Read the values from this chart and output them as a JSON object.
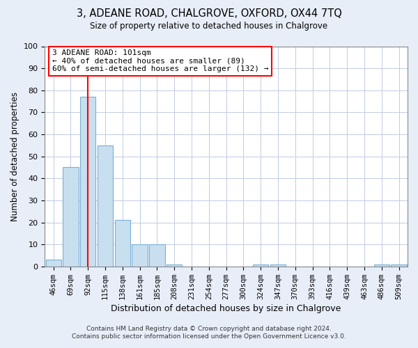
{
  "title": "3, ADEANE ROAD, CHALGROVE, OXFORD, OX44 7TQ",
  "subtitle": "Size of property relative to detached houses in Chalgrove",
  "xlabel": "Distribution of detached houses by size in Chalgrove",
  "ylabel": "Number of detached properties",
  "bar_labels": [
    "46sqm",
    "69sqm",
    "92sqm",
    "115sqm",
    "138sqm",
    "161sqm",
    "185sqm",
    "208sqm",
    "231sqm",
    "254sqm",
    "277sqm",
    "300sqm",
    "324sqm",
    "347sqm",
    "370sqm",
    "393sqm",
    "416sqm",
    "439sqm",
    "463sqm",
    "486sqm",
    "509sqm"
  ],
  "bar_values": [
    3,
    45,
    77,
    55,
    21,
    10,
    10,
    1,
    0,
    0,
    0,
    0,
    1,
    1,
    0,
    0,
    0,
    0,
    0,
    1,
    1
  ],
  "bar_color": "#c8dff0",
  "bar_edge_color": "#7aafd4",
  "vline_x_index": 2,
  "vline_color": "#ff0000",
  "ylim": [
    0,
    100
  ],
  "yticks": [
    0,
    10,
    20,
    30,
    40,
    50,
    60,
    70,
    80,
    90,
    100
  ],
  "annotation_box_text": "3 ADEANE ROAD: 101sqm\n← 40% of detached houses are smaller (89)\n60% of semi-detached houses are larger (132) →",
  "footer_line1": "Contains HM Land Registry data © Crown copyright and database right 2024.",
  "footer_line2": "Contains public sector information licensed under the Open Government Licence v3.0.",
  "bg_color": "#e8eef8",
  "plot_bg_color": "#ffffff",
  "grid_color": "#c0cce0"
}
